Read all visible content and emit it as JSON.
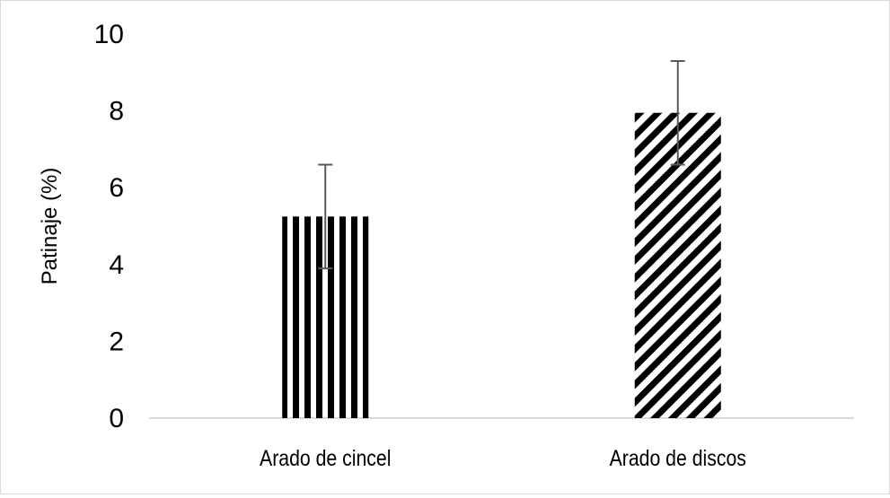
{
  "chart_data": {
    "type": "bar",
    "title": "",
    "xlabel": "",
    "ylabel": "Patinaje (%)",
    "categories": [
      "Arado de cincel",
      "Arado de discos"
    ],
    "values": [
      5.25,
      7.95
    ],
    "error": [
      1.35,
      1.35
    ],
    "ylim": [
      0,
      10
    ],
    "yticks": [
      0,
      2,
      4,
      6,
      8,
      10
    ],
    "grid": false,
    "legend": "none",
    "patterns": [
      "vertical-stripes",
      "diagonal-stripes"
    ],
    "colors": {
      "bar": "#000000",
      "error_bar": "#595959",
      "axis": "#d9d9d9"
    }
  }
}
